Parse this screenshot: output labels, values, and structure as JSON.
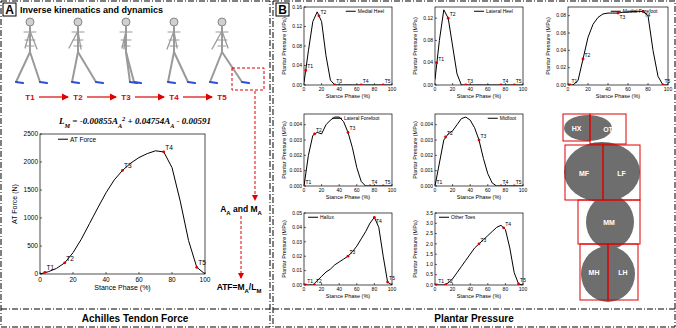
{
  "chart_data": [
    {
      "type": "line",
      "xlabel": "Stance Phase (%)",
      "ylabel": "AT Force (N)",
      "xlim": [
        0,
        100
      ],
      "ylim": [
        0,
        2500
      ],
      "xticks": [
        0,
        20,
        40,
        60,
        80,
        100
      ],
      "yticks": [
        0,
        500,
        1000,
        1500,
        2000,
        2500
      ],
      "legend": "upper left",
      "x": [
        0,
        5,
        10,
        15,
        20,
        25,
        30,
        35,
        40,
        45,
        50,
        55,
        60,
        65,
        70,
        75,
        80,
        85,
        90,
        95,
        100
      ],
      "series": [
        {
          "name": "AT Force",
          "color": "#000000",
          "values": [
            0,
            40,
            100,
            200,
            380,
            620,
            900,
            1180,
            1450,
            1680,
            1850,
            1980,
            2080,
            2150,
            2200,
            2180,
            1900,
            1300,
            600,
            120,
            0
          ]
        }
      ],
      "annotations": [
        {
          "text": "T1",
          "x": 3,
          "y": 30
        },
        {
          "text": "T2",
          "x": 15,
          "y": 200
        },
        {
          "text": "T3",
          "x": 50,
          "y": 1850
        },
        {
          "text": "T4",
          "x": 75,
          "y": 2180
        },
        {
          "text": "T5",
          "x": 95,
          "y": 120
        }
      ]
    },
    {
      "type": "line",
      "xlabel": "Stance Phase (%)",
      "ylabel": "Plantar Pressure (MPa)",
      "xlim": [
        0,
        100
      ],
      "ylim": [
        0,
        0.16
      ],
      "xticks": [
        0,
        20,
        40,
        60,
        80,
        100
      ],
      "yticks": [
        {
          "value": 0,
          "label": "0.00"
        },
        {
          "value": 0.04,
          "label": "0.04"
        },
        {
          "value": 0.08,
          "label": "0.08"
        },
        {
          "value": 0.12,
          "label": "0.12"
        },
        {
          "value": 0.16,
          "label": "0.16"
        }
      ],
      "legend": "upper right",
      "x": [
        0,
        5,
        10,
        15,
        20,
        25,
        30,
        35,
        40,
        45,
        50,
        55,
        60,
        65,
        70,
        75,
        80,
        85,
        90,
        95,
        100
      ],
      "series": [
        {
          "name": "Medial Heel",
          "color": "#000000",
          "values": [
            0.005,
            0.07,
            0.13,
            0.15,
            0.13,
            0.06,
            0.01,
            0,
            0,
            0,
            0,
            0,
            0,
            0,
            0,
            0,
            0,
            0,
            0,
            0,
            0
          ]
        }
      ],
      "annotations": [
        {
          "text": "T1",
          "x": 2,
          "y": 0.03
        },
        {
          "text": "T2",
          "x": 17,
          "y": 0.142
        },
        {
          "text": "T3",
          "x": 35,
          "y": 0
        },
        {
          "text": "T4",
          "x": 65,
          "y": 0
        },
        {
          "text": "T5",
          "x": 90,
          "y": 0
        }
      ]
    },
    {
      "type": "line",
      "xlabel": "Stance Phase (%)",
      "ylabel": "Plantar Pressure (MPa)",
      "xlim": [
        0,
        100
      ],
      "ylim": [
        0,
        0.14
      ],
      "xticks": [
        0,
        20,
        40,
        60,
        80,
        100
      ],
      "yticks": [
        {
          "value": 0,
          "label": "0.00"
        },
        {
          "value": 0.04,
          "label": "0.04"
        },
        {
          "value": 0.08,
          "label": "0.08"
        },
        {
          "value": 0.12,
          "label": "0.12"
        }
      ],
      "legend": "upper right",
      "x": [
        0,
        5,
        10,
        15,
        20,
        25,
        30,
        35,
        40,
        45,
        50,
        55,
        60,
        65,
        70,
        75,
        80,
        85,
        90,
        95,
        100
      ],
      "series": [
        {
          "name": "Lateral Heel",
          "color": "#000000",
          "values": [
            0.01,
            0.08,
            0.135,
            0.12,
            0.07,
            0.02,
            0,
            0,
            0,
            0,
            0,
            0,
            0,
            0,
            0,
            0,
            0,
            0,
            0,
            0,
            0
          ]
        }
      ],
      "annotations": [
        {
          "text": "T1",
          "x": 2,
          "y": 0.04
        },
        {
          "text": "T2",
          "x": 15,
          "y": 0.12
        },
        {
          "text": "T3",
          "x": 35,
          "y": 0
        },
        {
          "text": "T4",
          "x": 75,
          "y": 0
        },
        {
          "text": "T5",
          "x": 90,
          "y": 0
        }
      ]
    },
    {
      "type": "line",
      "xlabel": "Stance Phase (%)",
      "ylabel": "Plantar Pressure (MPa)",
      "xlim": [
        0,
        100
      ],
      "ylim": [
        0,
        0.09
      ],
      "xticks": [
        0,
        20,
        40,
        60,
        80,
        100
      ],
      "yticks": [
        {
          "value": 0,
          "label": "0.00"
        },
        {
          "value": 0.02,
          "label": "0.02"
        },
        {
          "value": 0.04,
          "label": "0.04"
        },
        {
          "value": 0.06,
          "label": "0.06"
        },
        {
          "value": 0.08,
          "label": "0.08"
        }
      ],
      "legend": "upper right",
      "x": [
        0,
        5,
        10,
        15,
        20,
        25,
        30,
        35,
        40,
        45,
        50,
        55,
        60,
        65,
        70,
        75,
        80,
        85,
        90,
        95,
        100
      ],
      "series": [
        {
          "name": "Medial Forefoot",
          "color": "#000000",
          "values": [
            0,
            0,
            0.005,
            0.03,
            0.055,
            0.07,
            0.078,
            0.082,
            0.083,
            0.083,
            0.083,
            0.084,
            0.084,
            0.085,
            0.085,
            0.085,
            0.08,
            0.04,
            0.01,
            0,
            0
          ]
        }
      ],
      "annotations": [
        {
          "text": "T1",
          "x": 2,
          "y": 0
        },
        {
          "text": "T2",
          "x": 15,
          "y": 0.03
        },
        {
          "text": "T3",
          "x": 50,
          "y": 0.083
        },
        {
          "text": "T4",
          "x": 75,
          "y": 0.085
        },
        {
          "text": "T5",
          "x": 95,
          "y": 0
        }
      ]
    },
    {
      "type": "line",
      "xlabel": "Stance Phase (%)",
      "ylabel": "Plantar Pressure (MPa)",
      "xlim": [
        0,
        100
      ],
      "ylim": [
        0,
        0.0047
      ],
      "xticks": [
        0,
        20,
        40,
        60,
        80,
        100
      ],
      "yticks": [
        {
          "value": 0,
          "label": "0.000"
        },
        {
          "value": 0.001,
          "label": "0.001"
        },
        {
          "value": 0.002,
          "label": "0.002"
        },
        {
          "value": 0.003,
          "label": "0.003"
        },
        {
          "value": 0.004,
          "label": "0.004"
        }
      ],
      "legend": "upper right",
      "x": [
        0,
        5,
        10,
        15,
        20,
        25,
        30,
        35,
        40,
        45,
        50,
        55,
        60,
        65,
        70,
        75,
        80,
        85,
        90,
        95,
        100
      ],
      "series": [
        {
          "name": "Lateral Forefoot",
          "color": "#000000",
          "values": [
            0,
            0.002,
            0.0033,
            0.0035,
            0.0034,
            0.004,
            0.0043,
            0.0045,
            0.0045,
            0.0042,
            0.0035,
            0.0025,
            0.0012,
            0.0003,
            0,
            0,
            0,
            0,
            0,
            0,
            0
          ]
        }
      ],
      "annotations": [
        {
          "text": "T1",
          "x": 0,
          "y": 0
        },
        {
          "text": "T2",
          "x": 12,
          "y": 0.0034
        },
        {
          "text": "T3",
          "x": 50,
          "y": 0.0035
        },
        {
          "text": "T4",
          "x": 75,
          "y": 0
        },
        {
          "text": "T5",
          "x": 90,
          "y": 0
        }
      ]
    },
    {
      "type": "line",
      "xlabel": "Stance Phase (%)",
      "ylabel": "Plantar Pressure (MPa)",
      "xlim": [
        0,
        100
      ],
      "ylim": [
        0,
        0.0047
      ],
      "xticks": [
        0,
        20,
        40,
        60,
        80,
        100
      ],
      "yticks": [
        {
          "value": 0,
          "label": "0.000"
        },
        {
          "value": 0.001,
          "label": "0.001"
        },
        {
          "value": 0.002,
          "label": "0.002"
        },
        {
          "value": 0.003,
          "label": "0.003"
        },
        {
          "value": 0.004,
          "label": "0.004"
        }
      ],
      "legend": "upper right",
      "x": [
        0,
        5,
        10,
        15,
        20,
        25,
        30,
        35,
        40,
        45,
        50,
        55,
        60,
        65,
        70,
        75,
        80,
        85,
        90,
        95,
        100
      ],
      "series": [
        {
          "name": "Midfoot",
          "color": "#000000",
          "values": [
            0,
            0.0015,
            0.003,
            0.0034,
            0.0036,
            0.004,
            0.0044,
            0.0045,
            0.0043,
            0.0038,
            0.003,
            0.0018,
            0.0008,
            0.0002,
            0,
            0,
            0,
            0,
            0,
            0,
            0
          ]
        }
      ],
      "annotations": [
        {
          "text": "T1",
          "x": 0,
          "y": 0
        },
        {
          "text": "T2",
          "x": 12,
          "y": 0.0032
        },
        {
          "text": "T3",
          "x": 50,
          "y": 0.003
        },
        {
          "text": "T4",
          "x": 75,
          "y": 0
        },
        {
          "text": "T5",
          "x": 90,
          "y": 0
        }
      ]
    },
    {
      "type": "line",
      "xlabel": "Stance Phase (%)",
      "ylabel": "Plantar Pressure (MPa)",
      "xlim": [
        0,
        100
      ],
      "ylim": [
        0,
        0.05
      ],
      "xticks": [
        0,
        20,
        40,
        60,
        80,
        100
      ],
      "yticks": [
        {
          "value": 0,
          "label": "0.00"
        },
        {
          "value": 0.01,
          "label": "0.01"
        },
        {
          "value": 0.02,
          "label": "0.02"
        },
        {
          "value": 0.03,
          "label": "0.03"
        },
        {
          "value": 0.04,
          "label": "0.04"
        },
        {
          "value": 0.05,
          "label": "0.05"
        }
      ],
      "legend": "upper left",
      "x": [
        0,
        5,
        10,
        15,
        20,
        25,
        30,
        35,
        40,
        45,
        50,
        55,
        60,
        65,
        70,
        75,
        80,
        85,
        90,
        95,
        100
      ],
      "series": [
        {
          "name": "Hallux",
          "color": "#000000",
          "values": [
            0,
            0,
            0,
            0.003,
            0.006,
            0.009,
            0.011,
            0.014,
            0.016,
            0.018,
            0.02,
            0.023,
            0.027,
            0.032,
            0.037,
            0.043,
            0.047,
            0.04,
            0.02,
            0.002,
            0
          ]
        }
      ],
      "annotations": [
        {
          "text": "T1",
          "x": 2,
          "y": 0
        },
        {
          "text": "T2",
          "x": 12,
          "y": 0
        },
        {
          "text": "T3",
          "x": 50,
          "y": 0.02
        },
        {
          "text": "T4",
          "x": 80,
          "y": 0.047
        },
        {
          "text": "T5",
          "x": 95,
          "y": 0.002
        }
      ]
    },
    {
      "type": "line",
      "xlabel": "Stance Phase (%)",
      "ylabel": "Plantar Pressure (MPa)",
      "xlim": [
        0,
        100
      ],
      "ylim": [
        0,
        3.5
      ],
      "xticks": [
        0,
        20,
        40,
        60,
        80,
        100
      ],
      "yticks": [
        {
          "value": 0,
          "label": "0.0"
        },
        {
          "value": 0.5,
          "label": "0.5"
        },
        {
          "value": 1,
          "label": "1.0"
        },
        {
          "value": 1.5,
          "label": "1.5"
        },
        {
          "value": 2,
          "label": "2.0"
        },
        {
          "value": 2.5,
          "label": "2.5"
        },
        {
          "value": 3,
          "label": "3.0"
        },
        {
          "value": 3.5,
          "label": "3.5"
        }
      ],
      "legend": "upper left",
      "x": [
        0,
        5,
        10,
        15,
        20,
        25,
        30,
        35,
        40,
        45,
        50,
        55,
        60,
        65,
        70,
        75,
        80,
        85,
        90,
        95,
        100
      ],
      "series": [
        {
          "name": "Other Toes",
          "color": "#000000",
          "values": [
            0,
            0,
            0,
            0.1,
            0.3,
            0.6,
            0.9,
            1.2,
            1.5,
            1.8,
            2.0,
            2.2,
            2.4,
            2.6,
            2.8,
            2.9,
            2.7,
            1.8,
            0.6,
            0.05,
            0
          ]
        }
      ],
      "annotations": [
        {
          "text": "T1",
          "x": 2,
          "y": 0
        },
        {
          "text": "T2",
          "x": 12,
          "y": 0
        },
        {
          "text": "T3",
          "x": 50,
          "y": 2.0
        },
        {
          "text": "T4",
          "x": 78,
          "y": 2.78
        },
        {
          "text": "T5",
          "x": 95,
          "y": 0.05
        }
      ]
    }
  ],
  "diagram": {
    "panel_a": {
      "label": "A",
      "title": "Inverse kinematics and dynamics",
      "phases": [
        "T1",
        "T2",
        "T3",
        "T4",
        "T5"
      ],
      "equation": [
        {
          "text": "L"
        },
        {
          "text": "M",
          "sub": true
        },
        {
          "text": " = -0.00855A"
        },
        {
          "text": "A",
          "sub": true
        },
        {
          "text": "2",
          "sup": true
        },
        {
          "text": " + 0.04754A"
        },
        {
          "text": "A",
          "sub": true
        },
        {
          "text": " - 0.00591"
        }
      ],
      "inputs": [
        {
          "text": "A"
        },
        {
          "text": "A",
          "sub": true
        },
        {
          "text": " and M"
        },
        {
          "text": "A",
          "sub": true
        }
      ],
      "formula": [
        {
          "text": "ATF=M"
        },
        {
          "text": "A",
          "sub": true
        },
        {
          "text": "/L"
        },
        {
          "text": "M",
          "sub": true
        }
      ],
      "caption": "Achilles Tendon Force"
    },
    "panel_b": {
      "label": "B",
      "caption": "Plantar Pressure",
      "foot_regions": [
        "HX",
        "OT",
        "MF",
        "LF",
        "MM",
        "MH",
        "LH"
      ]
    }
  }
}
